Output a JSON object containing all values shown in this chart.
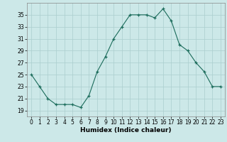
{
  "x": [
    0,
    1,
    2,
    3,
    4,
    5,
    6,
    7,
    8,
    9,
    10,
    11,
    12,
    13,
    14,
    15,
    16,
    17,
    18,
    19,
    20,
    21,
    22,
    23
  ],
  "y": [
    25,
    23,
    21,
    20,
    20,
    20,
    19.5,
    21.5,
    25.5,
    28,
    31,
    33,
    35,
    35,
    35,
    34.5,
    36,
    34,
    30,
    29,
    27,
    25.5,
    23,
    23
  ],
  "xlabel": "Humidex (Indice chaleur)",
  "xlim": [
    -0.5,
    23.5
  ],
  "ylim": [
    18,
    37
  ],
  "yticks": [
    19,
    21,
    23,
    25,
    27,
    29,
    31,
    33,
    35
  ],
  "xticks": [
    0,
    1,
    2,
    3,
    4,
    5,
    6,
    7,
    8,
    9,
    10,
    11,
    12,
    13,
    14,
    15,
    16,
    17,
    18,
    19,
    20,
    21,
    22,
    23
  ],
  "line_color": "#1a6b5a",
  "marker": "+",
  "bg_color": "#cce8e8",
  "grid_color": "#aacece",
  "tick_fontsize": 5.5,
  "xlabel_fontsize": 6.5
}
